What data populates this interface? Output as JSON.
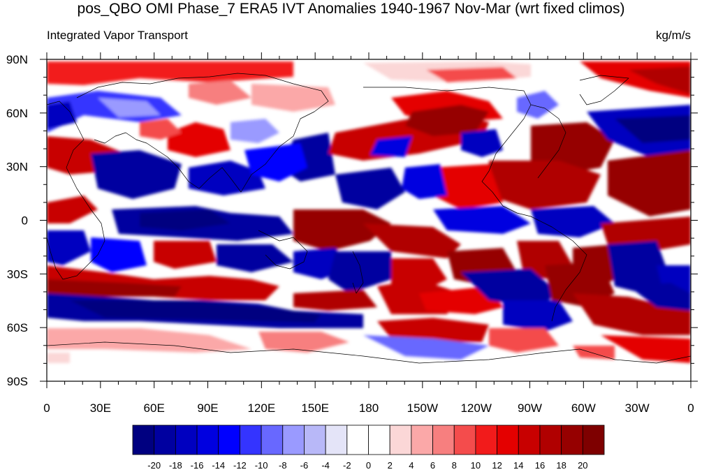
{
  "title": "pos_QBO OMI Phase_7 ERA5 IVT Anomalies 1940-1967 Nov-Mar (wrt fixed climos)",
  "left_label": "Integrated Vapor Transport",
  "right_label": "kg/m/s",
  "map": {
    "lon_ticks": [
      "0",
      "30E",
      "60E",
      "90E",
      "120E",
      "150E",
      "180",
      "150W",
      "120W",
      "90W",
      "60W",
      "30W",
      "0"
    ],
    "lat_ticks": [
      "90N",
      "60N",
      "30N",
      "0",
      "30S",
      "60S",
      "90S"
    ]
  },
  "colorbar": {
    "labels": [
      "-20",
      "-18",
      "-16",
      "-14",
      "-12",
      "-10",
      "-8",
      "-6",
      "-4",
      "-2",
      "0",
      "2",
      "4",
      "6",
      "8",
      "10",
      "12",
      "14",
      "16",
      "18",
      "20"
    ],
    "colors": [
      "#000080",
      "#0000a0",
      "#0000c0",
      "#0000e0",
      "#0000ff",
      "#3434ff",
      "#6868ff",
      "#9a9aff",
      "#b8b8f8",
      "#e4e4f8",
      "#ffffff",
      "#ffffff",
      "#fbd7d7",
      "#fba8a8",
      "#f77f7f",
      "#f44c4c",
      "#f21b1b",
      "#e40000",
      "#c80000",
      "#b00000",
      "#960000",
      "#7e0000"
    ]
  }
}
